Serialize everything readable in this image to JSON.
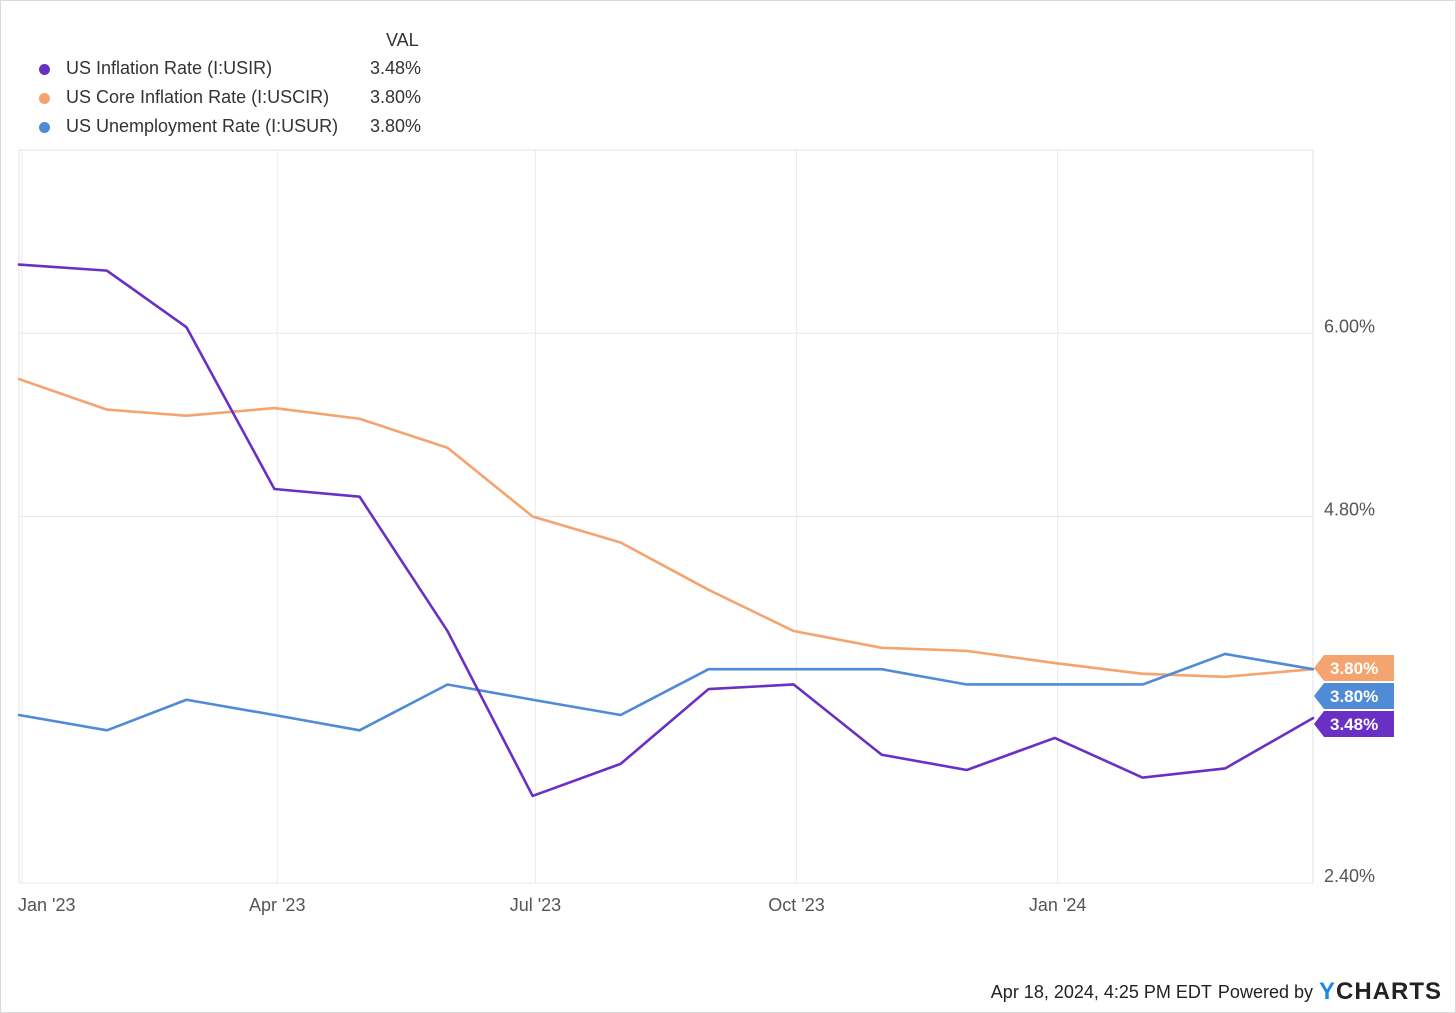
{
  "legend": {
    "header": "VAL",
    "items": [
      {
        "name": "US Inflation Rate (I:USIR)",
        "value": "3.48%",
        "color": "#6a2fc4"
      },
      {
        "name": "US Core Inflation Rate (I:USCIR)",
        "value": "3.80%",
        "color": "#f4a46e"
      },
      {
        "name": "US Unemployment Rate (I:USUR)",
        "value": "3.80%",
        "color": "#4f8bd6"
      }
    ]
  },
  "footer": {
    "timestamp": "Apr 18, 2024, 4:25 PM EDT",
    "powered_by": "Powered by",
    "brand_y": "Y",
    "brand_rest": "CHARTS"
  },
  "chart_data": {
    "type": "line",
    "x": [
      "2022-12-31",
      "2023-01-31",
      "2023-02-28",
      "2023-03-31",
      "2023-04-30",
      "2023-05-31",
      "2023-06-30",
      "2023-07-31",
      "2023-08-31",
      "2023-09-30",
      "2023-10-31",
      "2023-11-30",
      "2023-12-31",
      "2024-01-31",
      "2024-02-29",
      "2024-03-31"
    ],
    "x_ticks": [
      {
        "date": "2023-01-01",
        "label": "Jan '23"
      },
      {
        "date": "2023-04-01",
        "label": "Apr '23"
      },
      {
        "date": "2023-07-01",
        "label": "Jul '23"
      },
      {
        "date": "2023-10-01",
        "label": "Oct '23"
      },
      {
        "date": "2024-01-01",
        "label": "Jan '24"
      }
    ],
    "y_ticks": [
      {
        "value": 2.4,
        "label": "2.40%"
      },
      {
        "value": 4.8,
        "label": "4.80%"
      },
      {
        "value": 6.0,
        "label": "6.00%"
      }
    ],
    "ylim": [
      2.4,
      7.2
    ],
    "xlim": [
      "2022-12-31",
      "2024-03-31"
    ],
    "grid": true,
    "legend_position": "top-left",
    "series": [
      {
        "name": "US Core Inflation Rate (I:USCIR)",
        "color": "#f4a46e",
        "values": [
          5.7,
          5.5,
          5.46,
          5.51,
          5.44,
          5.25,
          4.8,
          4.63,
          4.32,
          4.05,
          3.94,
          3.92,
          3.84,
          3.77,
          3.75,
          3.8
        ],
        "badge": "3.80%"
      },
      {
        "name": "US Unemployment Rate (I:USUR)",
        "color": "#4f8bd6",
        "values": [
          3.5,
          3.4,
          3.6,
          3.5,
          3.4,
          3.7,
          3.6,
          3.5,
          3.8,
          3.8,
          3.8,
          3.7,
          3.7,
          3.7,
          3.9,
          3.8
        ],
        "badge": "3.80%"
      },
      {
        "name": "US Inflation Rate (I:USIR)",
        "color": "#6a2fc4",
        "values": [
          6.45,
          6.41,
          6.04,
          4.98,
          4.93,
          4.05,
          2.97,
          3.18,
          3.67,
          3.7,
          3.24,
          3.14,
          3.35,
          3.09,
          3.15,
          3.48
        ],
        "badge": "3.48%"
      }
    ]
  }
}
